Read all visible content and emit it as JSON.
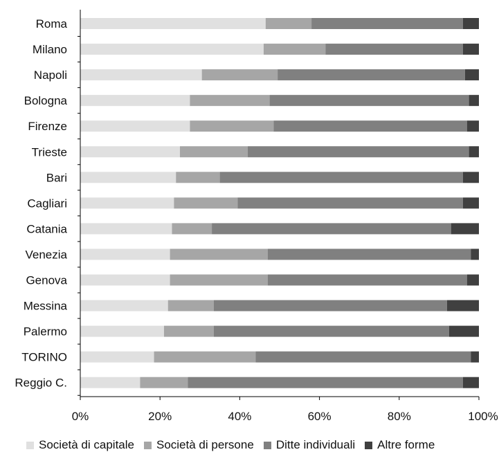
{
  "chart_data": {
    "type": "bar",
    "orientation": "horizontal",
    "stacked": "percent",
    "categories": [
      "Roma",
      "Milano",
      "Napoli",
      "Bologna",
      "Firenze",
      "Trieste",
      "Bari",
      "Cagliari",
      "Catania",
      "Venezia",
      "Genova",
      "Messina",
      "Palermo",
      "TORINO",
      "Reggio C."
    ],
    "series": [
      {
        "name": "Società di capitale",
        "color": "#e0e0e0",
        "values": [
          46.5,
          46,
          30.5,
          27.5,
          27.5,
          25,
          24,
          23.5,
          23,
          22.5,
          22.5,
          22,
          21,
          18.5,
          15
        ]
      },
      {
        "name": "Società di persone",
        "color": "#a6a6a6",
        "values": [
          11.5,
          15.5,
          19,
          20,
          21,
          17,
          11,
          16,
          10,
          24.5,
          24.5,
          11.5,
          12.5,
          25.5,
          12
        ]
      },
      {
        "name": "Ditte individuali",
        "color": "#808080",
        "values": [
          38,
          34.5,
          47,
          50,
          48.5,
          55.5,
          61,
          56.5,
          60,
          51,
          50,
          58.5,
          59,
          54,
          69
        ]
      },
      {
        "name": "Altre forme",
        "color": "#404040",
        "values": [
          4,
          4,
          3.5,
          2.5,
          3,
          2.5,
          4,
          4,
          7,
          2,
          3,
          8,
          7.5,
          2,
          4
        ]
      }
    ],
    "xlim": [
      0,
      100
    ],
    "xticks": [
      "0%",
      "20%",
      "40%",
      "60%",
      "80%",
      "100%"
    ],
    "grid": false,
    "legend_position": "bottom"
  }
}
